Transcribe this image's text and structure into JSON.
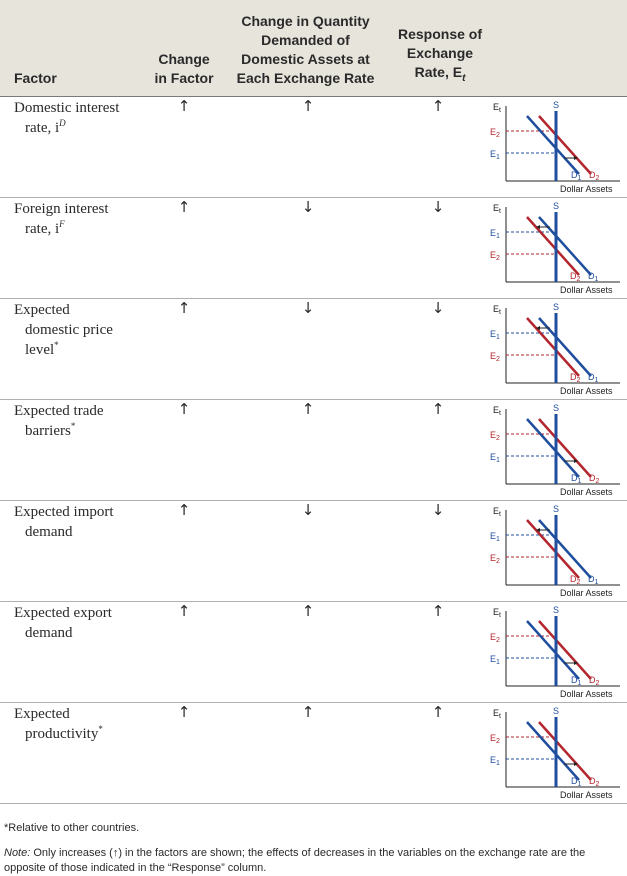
{
  "header": {
    "factor": "Factor",
    "change_line1": "Change",
    "change_line2": "in Factor",
    "qty_line1": "Change in Quantity",
    "qty_line2": "Demanded of",
    "qty_line3": "Domestic Assets at",
    "qty_line4": "Each Exchange Rate",
    "resp_line1": "Response of",
    "resp_line2": "Exchange",
    "resp_line3": "Rate, E",
    "resp_sub": "t"
  },
  "rows": [
    {
      "factor_line1": "Domestic interest",
      "factor_line2": "rate, i",
      "factor_sup": "D",
      "change": "↑",
      "qty": "↑",
      "resp": "↑",
      "shift": "right"
    },
    {
      "factor_line1": "Foreign interest",
      "factor_line2": "rate, i",
      "factor_sup": "F",
      "change": "↑",
      "qty": "↓",
      "resp": "↓",
      "shift": "left"
    },
    {
      "factor_line1": "Expected",
      "factor_line2": "domestic price",
      "factor_line3": "level",
      "factor_sup": "*",
      "change": "↑",
      "qty": "↓",
      "resp": "↓",
      "shift": "left"
    },
    {
      "factor_line1": "Expected trade",
      "factor_line2": "barriers",
      "factor_sup": "*",
      "change": "↑",
      "qty": "↑",
      "resp": "↑",
      "shift": "right"
    },
    {
      "factor_line1": "Expected import",
      "factor_line2": "demand",
      "factor_sup": "",
      "change": "↑",
      "qty": "↓",
      "resp": "↓",
      "shift": "left"
    },
    {
      "factor_line1": "Expected export",
      "factor_line2": "demand",
      "factor_sup": "",
      "change": "↑",
      "qty": "↑",
      "resp": "↑",
      "shift": "right"
    },
    {
      "factor_line1": "Expected",
      "factor_line2": "productivity",
      "factor_sup": "*",
      "change": "↑",
      "qty": "↑",
      "resp": "↑",
      "shift": "right"
    }
  ],
  "graph_labels": {
    "y_axis": "E",
    "y_axis_sub": "t",
    "e1": "E",
    "e1_sub": "1",
    "e2": "E",
    "e2_sub": "2",
    "s": "S",
    "d1": "D",
    "d1_sub": "1",
    "d2": "D",
    "d2_sub": "2",
    "x_axis": "Dollar Assets"
  },
  "colors": {
    "supply": "#1f4e9e",
    "demand_new": "#b3262d",
    "header_bg": "#e7e4dc",
    "e1_dash": "#1f4e9e",
    "e2_dash": "#b3262d"
  },
  "footnote": "*Relative to other countries.",
  "note_label": "Note:",
  "note_text": " Only increases (↑) in the factors are shown; the effects of decreases in the variables on the exchange rate are the opposite of those indicated in the “Response” column."
}
